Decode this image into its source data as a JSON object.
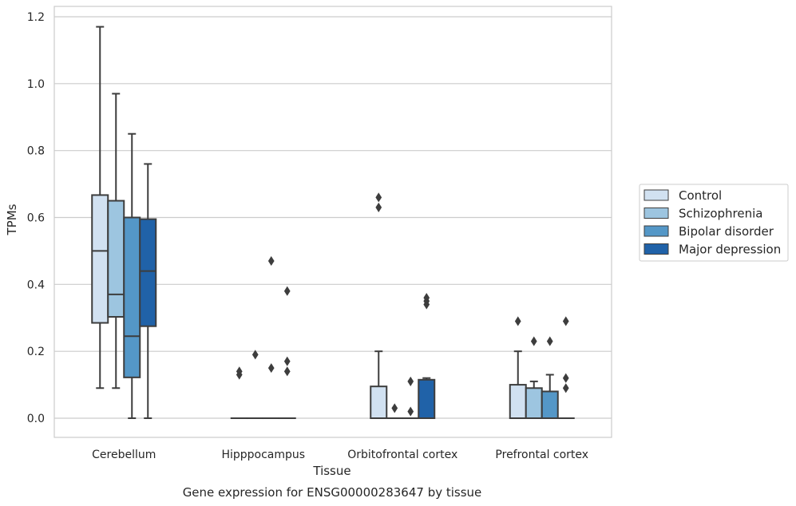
{
  "chart_data": {
    "type": "box",
    "xlabel": "Tissue",
    "ylabel": "TPMs",
    "caption": "Gene expression for ENSG00000283647 by tissue",
    "ylim": [
      -0.06,
      1.23
    ],
    "yticks": [
      "0.0",
      "0.2",
      "0.4",
      "0.6",
      "0.8",
      "1.0",
      "1.2"
    ],
    "grid": "horizontal",
    "legend_position": "right",
    "categories": [
      "Cerebellum",
      "Hipppocampus",
      "Orbitofrontal cortex",
      "Prefrontal cortex"
    ],
    "series": [
      {
        "name": "Control",
        "color": "#d1e1f1",
        "boxes": [
          {
            "min": 0.09,
            "q1": 0.285,
            "median": 0.5,
            "q3": 0.667,
            "max": 1.17,
            "outliers": []
          },
          {
            "min": 0.0,
            "q1": 0.0,
            "median": 0.0,
            "q3": 0.0,
            "max": 0.0,
            "outliers": [
              0.13,
              0.14
            ]
          },
          {
            "min": 0.0,
            "q1": 0.0,
            "median": 0.0,
            "q3": 0.095,
            "max": 0.2,
            "outliers": [
              0.63,
              0.66
            ]
          },
          {
            "min": 0.0,
            "q1": 0.0,
            "median": 0.0,
            "q3": 0.1,
            "max": 0.2,
            "outliers": [
              0.29
            ]
          }
        ]
      },
      {
        "name": "Schizophrenia",
        "color": "#9dc5e0",
        "boxes": [
          {
            "min": 0.09,
            "q1": 0.303,
            "median": 0.37,
            "q3": 0.65,
            "max": 0.97,
            "outliers": []
          },
          {
            "min": 0.0,
            "q1": 0.0,
            "median": 0.0,
            "q3": 0.0,
            "max": 0.0,
            "outliers": [
              0.19
            ]
          },
          {
            "min": 0.0,
            "q1": 0.0,
            "median": 0.0,
            "q3": 0.0,
            "max": 0.0,
            "outliers": [
              0.03
            ]
          },
          {
            "min": 0.0,
            "q1": 0.0,
            "median": 0.0,
            "q3": 0.09,
            "max": 0.11,
            "outliers": [
              0.23
            ]
          }
        ]
      },
      {
        "name": "Bipolar disorder",
        "color": "#5497c7",
        "boxes": [
          {
            "min": 0.0,
            "q1": 0.122,
            "median": 0.245,
            "q3": 0.6,
            "max": 0.85,
            "outliers": []
          },
          {
            "min": 0.0,
            "q1": 0.0,
            "median": 0.0,
            "q3": 0.0,
            "max": 0.0,
            "outliers": [
              0.15,
              0.47
            ]
          },
          {
            "min": 0.0,
            "q1": 0.0,
            "median": 0.0,
            "q3": 0.0,
            "max": 0.0,
            "outliers": [
              0.02,
              0.11
            ]
          },
          {
            "min": 0.0,
            "q1": 0.0,
            "median": 0.0,
            "q3": 0.08,
            "max": 0.13,
            "outliers": [
              0.23
            ]
          }
        ]
      },
      {
        "name": "Major depression",
        "color": "#2062a8",
        "boxes": [
          {
            "min": 0.0,
            "q1": 0.275,
            "median": 0.44,
            "q3": 0.595,
            "max": 0.76,
            "outliers": []
          },
          {
            "min": 0.0,
            "q1": 0.0,
            "median": 0.0,
            "q3": 0.0,
            "max": 0.0,
            "outliers": [
              0.14,
              0.17,
              0.38
            ]
          },
          {
            "min": 0.0,
            "q1": 0.0,
            "median": 0.0,
            "q3": 0.115,
            "max": 0.12,
            "outliers": [
              0.34,
              0.35,
              0.36
            ]
          },
          {
            "min": 0.0,
            "q1": 0.0,
            "median": 0.0,
            "q3": 0.0,
            "max": 0.0,
            "outliers": [
              0.09,
              0.12,
              0.29
            ]
          }
        ]
      }
    ]
  }
}
